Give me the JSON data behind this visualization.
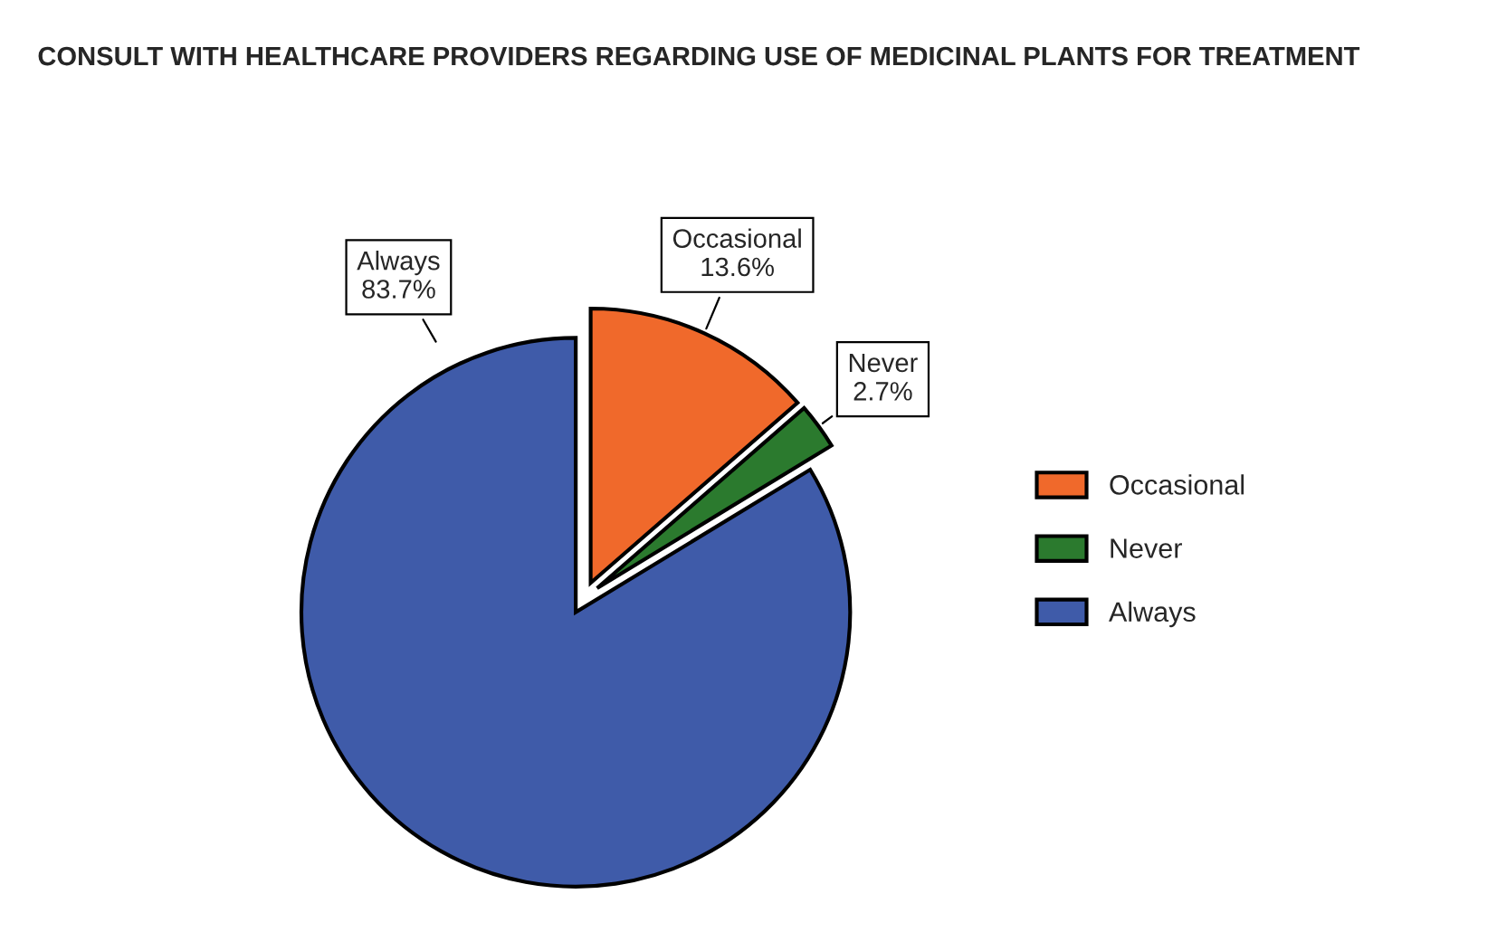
{
  "chart_data": {
    "type": "pie",
    "title": "CONSULT WITH HEALTHCARE PROVIDERS REGARDING USE OF MEDICINAL PLANTS FOR TREATMENT",
    "categories": [
      "Occasional",
      "Never",
      "Always"
    ],
    "values": [
      13.6,
      2.7,
      83.7
    ],
    "value_labels": [
      "13.6%",
      "2.7%",
      "83.7%"
    ],
    "colors": [
      "#f0692b",
      "#2b7a2e",
      "#3f5ba9"
    ],
    "legend": "right"
  }
}
